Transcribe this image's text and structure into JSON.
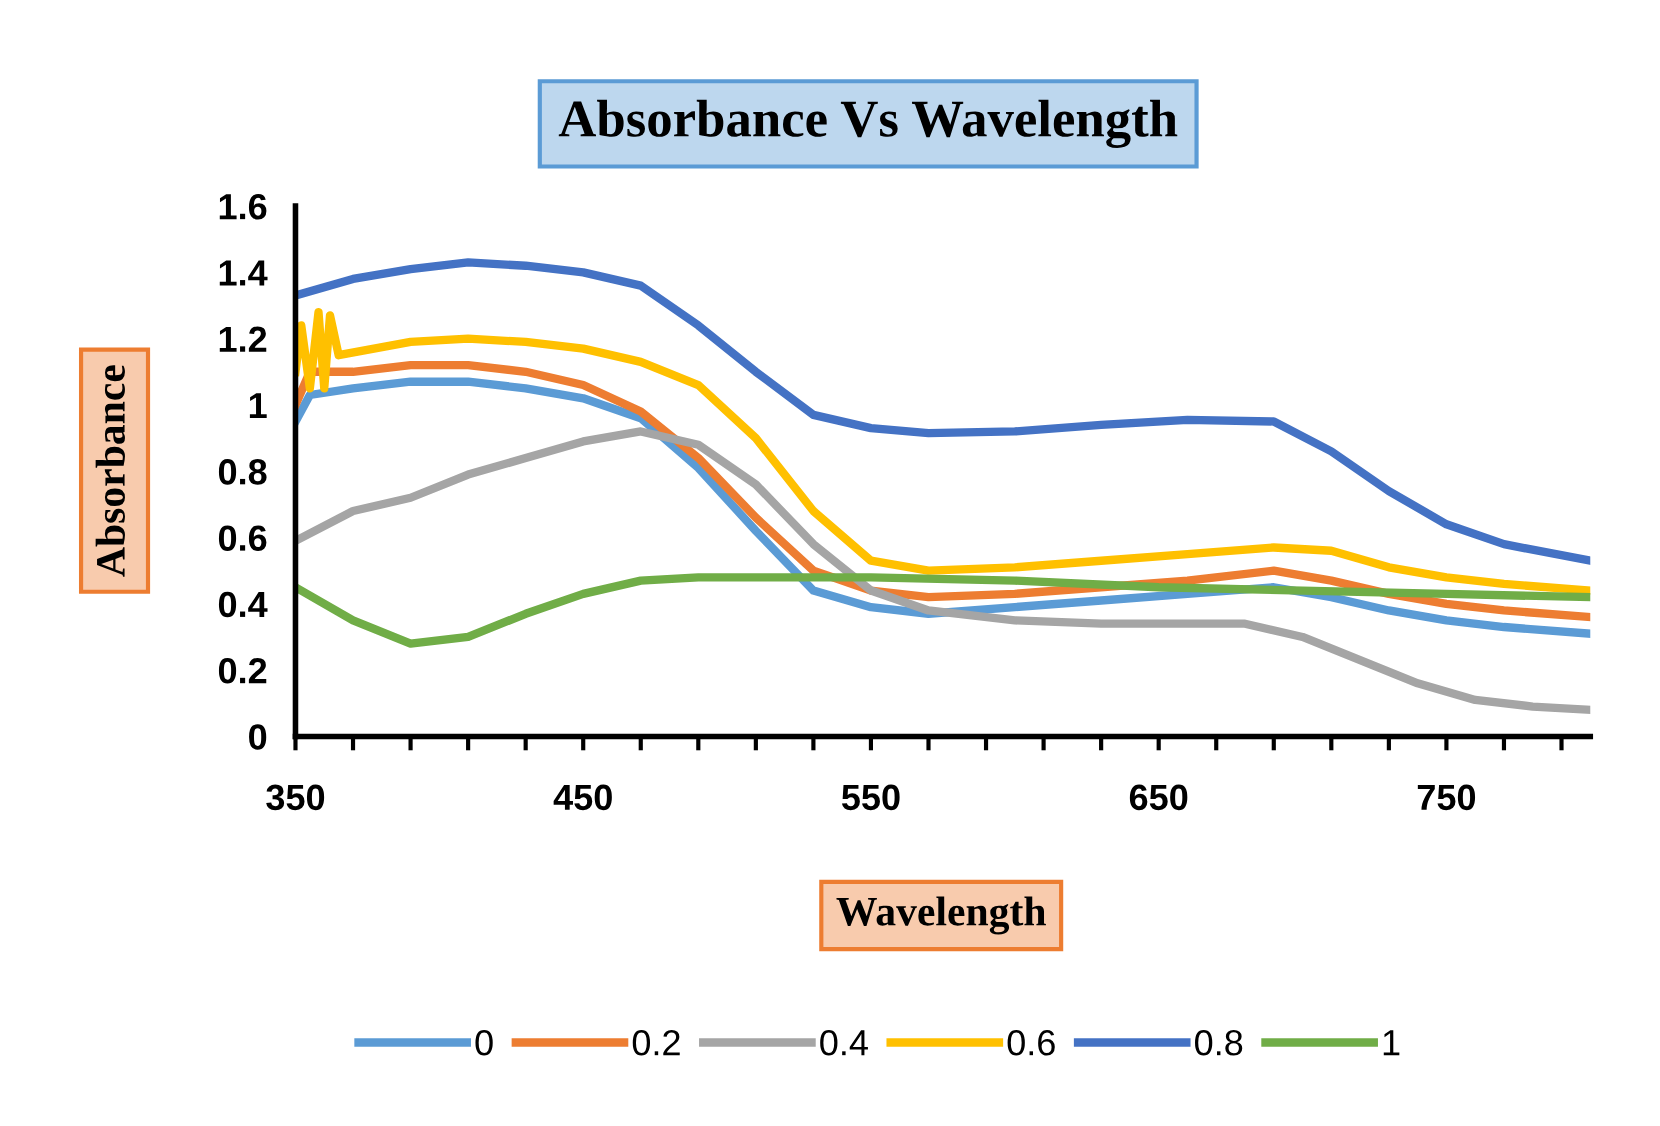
{
  "chart_data": {
    "type": "line",
    "title": "Absorbance Vs Wavelength",
    "xlabel": "Wavelength",
    "ylabel": "Absorbance",
    "xlim": [
      350,
      800
    ],
    "ylim": [
      0,
      1.6
    ],
    "xticks": [
      350,
      {
        "value": 370,
        "label": null
      },
      {
        "value": 390,
        "label": null
      },
      {
        "value": 410,
        "label": null
      },
      {
        "value": 430,
        "label": null
      },
      450,
      {
        "value": 470,
        "label": null
      },
      {
        "value": 490,
        "label": null
      },
      {
        "value": 510,
        "label": null
      },
      {
        "value": 530,
        "label": null
      },
      550,
      {
        "value": 570,
        "label": null
      },
      {
        "value": 590,
        "label": null
      },
      {
        "value": 610,
        "label": null
      },
      {
        "value": 630,
        "label": null
      },
      650,
      {
        "value": 670,
        "label": null
      },
      {
        "value": 690,
        "label": null
      },
      {
        "value": 710,
        "label": null
      },
      {
        "value": 730,
        "label": null
      },
      750,
      {
        "value": 770,
        "label": null
      },
      {
        "value": 790,
        "label": null
      }
    ],
    "yticks": [
      0,
      0.2,
      0.4,
      0.6,
      0.8,
      1,
      1.2,
      1.4,
      1.6
    ],
    "grid": false,
    "legend": "bottom",
    "marker": "none",
    "line_style": "solid",
    "series": [
      {
        "name": "0",
        "color": "#5b9bd5",
        "x": [
          350,
          355,
          370,
          390,
          410,
          430,
          450,
          470,
          490,
          510,
          530,
          550,
          570,
          600,
          630,
          660,
          690,
          710,
          730,
          750,
          770,
          800
        ],
        "values": [
          0.95,
          1.03,
          1.05,
          1.07,
          1.07,
          1.05,
          1.02,
          0.96,
          0.81,
          0.62,
          0.44,
          0.39,
          0.37,
          0.39,
          0.41,
          0.43,
          0.45,
          0.42,
          0.38,
          0.35,
          0.33,
          0.31
        ]
      },
      {
        "name": "0.2",
        "color": "#ed7d31",
        "x": [
          350,
          355,
          370,
          390,
          410,
          430,
          450,
          470,
          490,
          510,
          530,
          550,
          570,
          600,
          630,
          660,
          690,
          710,
          730,
          750,
          770,
          800
        ],
        "values": [
          1.0,
          1.1,
          1.1,
          1.12,
          1.12,
          1.1,
          1.06,
          0.98,
          0.84,
          0.66,
          0.5,
          0.44,
          0.42,
          0.43,
          0.45,
          0.47,
          0.5,
          0.47,
          0.43,
          0.4,
          0.38,
          0.36
        ]
      },
      {
        "name": "0.4",
        "color": "#a5a5a5",
        "x": [
          350,
          370,
          390,
          410,
          430,
          450,
          470,
          490,
          510,
          530,
          550,
          570,
          600,
          630,
          660,
          680,
          700,
          720,
          740,
          760,
          780,
          800
        ],
        "values": [
          0.59,
          0.68,
          0.72,
          0.79,
          0.84,
          0.89,
          0.92,
          0.88,
          0.76,
          0.58,
          0.44,
          0.38,
          0.35,
          0.34,
          0.34,
          0.34,
          0.3,
          0.23,
          0.16,
          0.11,
          0.09,
          0.08
        ]
      },
      {
        "name": "0.6",
        "color": "#ffc000",
        "x": [
          350,
          352,
          355,
          358,
          360,
          362,
          365,
          390,
          410,
          430,
          450,
          470,
          490,
          510,
          530,
          550,
          570,
          600,
          630,
          660,
          690,
          710,
          730,
          750,
          770,
          800
        ],
        "values": [
          1.1,
          1.24,
          1.05,
          1.28,
          1.05,
          1.27,
          1.15,
          1.19,
          1.2,
          1.19,
          1.17,
          1.13,
          1.06,
          0.9,
          0.68,
          0.53,
          0.5,
          0.51,
          0.53,
          0.55,
          0.57,
          0.56,
          0.51,
          0.48,
          0.46,
          0.44
        ]
      },
      {
        "name": "0.8",
        "color": "#4472c4",
        "x": [
          350,
          370,
          390,
          410,
          430,
          450,
          470,
          490,
          510,
          530,
          550,
          570,
          600,
          630,
          660,
          690,
          710,
          730,
          750,
          770,
          800
        ],
        "values": [
          1.33,
          1.38,
          1.41,
          1.43,
          1.42,
          1.4,
          1.36,
          1.24,
          1.1,
          0.97,
          0.93,
          0.915,
          0.92,
          0.94,
          0.955,
          0.95,
          0.86,
          0.74,
          0.64,
          0.58,
          0.53
        ]
      },
      {
        "name": "1",
        "color": "#70ad47",
        "x": [
          350,
          370,
          390,
          410,
          430,
          450,
          470,
          490,
          510,
          550,
          600,
          650,
          700,
          750,
          800
        ],
        "values": [
          0.45,
          0.35,
          0.28,
          0.3,
          0.37,
          0.43,
          0.47,
          0.48,
          0.48,
          0.48,
          0.47,
          0.45,
          0.44,
          0.43,
          0.42
        ]
      }
    ]
  }
}
